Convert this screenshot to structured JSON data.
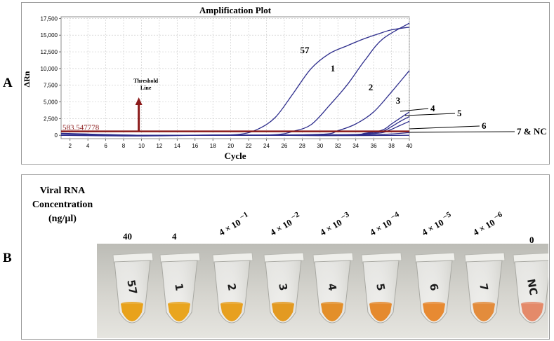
{
  "panels": {
    "a": "A",
    "b": "B"
  },
  "chart_data": {
    "type": "line",
    "title": "Amplification Plot",
    "xlabel": "Cycle",
    "ylabel": "ΔRn",
    "xlim": [
      1,
      40
    ],
    "ylim": [
      -500,
      17750
    ],
    "xticks": [
      2,
      4,
      6,
      8,
      10,
      12,
      14,
      16,
      18,
      20,
      22,
      24,
      26,
      28,
      30,
      32,
      34,
      36,
      38,
      40
    ],
    "xtick_labels": [
      "2",
      "4",
      "6",
      "8",
      "10",
      "12",
      "14",
      "16",
      "18",
      "20",
      "22",
      "24",
      "26",
      "28",
      "30",
      "32",
      "34",
      "36",
      "38",
      "40"
    ],
    "yticks": [
      0,
      2500,
      5000,
      7500,
      10000,
      12500,
      15000,
      17500
    ],
    "ytick_labels": [
      "0",
      "2,500",
      "5,000",
      "7,500",
      "10,000",
      "12,500",
      "15,000",
      "17,500"
    ],
    "grid": true,
    "threshold": {
      "value": 583.547778,
      "label": "583.547778"
    },
    "threshold_annotation": {
      "line1": "Threshold",
      "line2": "Line"
    },
    "series": [
      {
        "name": "57",
        "x": [
          1,
          10,
          18,
          21,
          23,
          25,
          27,
          29,
          31,
          33,
          35,
          37,
          38,
          40
        ],
        "y": [
          300,
          0,
          50,
          150,
          900,
          2700,
          6300,
          10000,
          12200,
          13400,
          14500,
          15400,
          15800,
          16200
        ]
      },
      {
        "name": "1",
        "x": [
          1,
          10,
          20,
          25,
          27,
          29,
          31,
          33,
          35,
          37,
          40
        ],
        "y": [
          200,
          0,
          20,
          100,
          600,
          1600,
          4400,
          7500,
          11200,
          14400,
          16800
        ]
      },
      {
        "name": "2",
        "x": [
          1,
          10,
          20,
          30,
          32,
          34,
          36,
          38,
          40
        ],
        "y": [
          0,
          0,
          0,
          150,
          700,
          1700,
          3500,
          6500,
          9700
        ]
      },
      {
        "name": "3",
        "x": [
          1,
          10,
          20,
          33,
          35,
          37,
          38,
          39,
          40
        ],
        "y": [
          0,
          0,
          0,
          100,
          300,
          800,
          1700,
          2600,
          3500
        ]
      },
      {
        "name": "4",
        "x": [
          1,
          10,
          20,
          33,
          35,
          37,
          38,
          39,
          40
        ],
        "y": [
          0,
          0,
          0,
          80,
          200,
          600,
          1300,
          2100,
          2800
        ]
      },
      {
        "name": "5",
        "x": [
          1,
          10,
          20,
          33,
          35,
          37,
          38,
          39,
          40
        ],
        "y": [
          0,
          0,
          0,
          50,
          150,
          400,
          900,
          1500,
          2100
        ]
      },
      {
        "name": "6",
        "x": [
          1,
          10,
          20,
          33,
          36,
          38,
          40
        ],
        "y": [
          0,
          0,
          0,
          20,
          80,
          200,
          400
        ]
      },
      {
        "name": "7 & NC",
        "x": [
          1,
          10,
          20,
          30,
          40
        ],
        "y": [
          0,
          -100,
          50,
          -50,
          0
        ]
      }
    ],
    "curve_labels": [
      "57",
      "1",
      "2",
      "3",
      "4",
      "5",
      "6",
      "7 & NC"
    ],
    "series_color": "#2d2d8c",
    "threshold_color": "#8b1a1a"
  },
  "panel_b": {
    "title_lines": [
      "Viral RNA",
      "Concentration",
      "(ng/µl)"
    ],
    "concentrations": [
      {
        "base": "40",
        "exp": ""
      },
      {
        "base": "4",
        "exp": ""
      },
      {
        "base": "4 × 10",
        "exp": "−1"
      },
      {
        "base": "4 × 10",
        "exp": "−2"
      },
      {
        "base": "4 × 10",
        "exp": "−3"
      },
      {
        "base": "4 × 10",
        "exp": "−4"
      },
      {
        "base": "4 × 10",
        "exp": "−5"
      },
      {
        "base": "4 × 10",
        "exp": "−6"
      },
      {
        "base": "0",
        "exp": ""
      }
    ],
    "tube_labels": [
      "57",
      "1",
      "2",
      "3",
      "4",
      "5",
      "6",
      "7",
      "NC"
    ],
    "tube_colors": [
      "#e8a21c",
      "#e9a51f",
      "#e7a020",
      "#e39a22",
      "#e38f2a",
      "#e58a2e",
      "#e78a32",
      "#e38c3c",
      "#e48a6a"
    ]
  }
}
